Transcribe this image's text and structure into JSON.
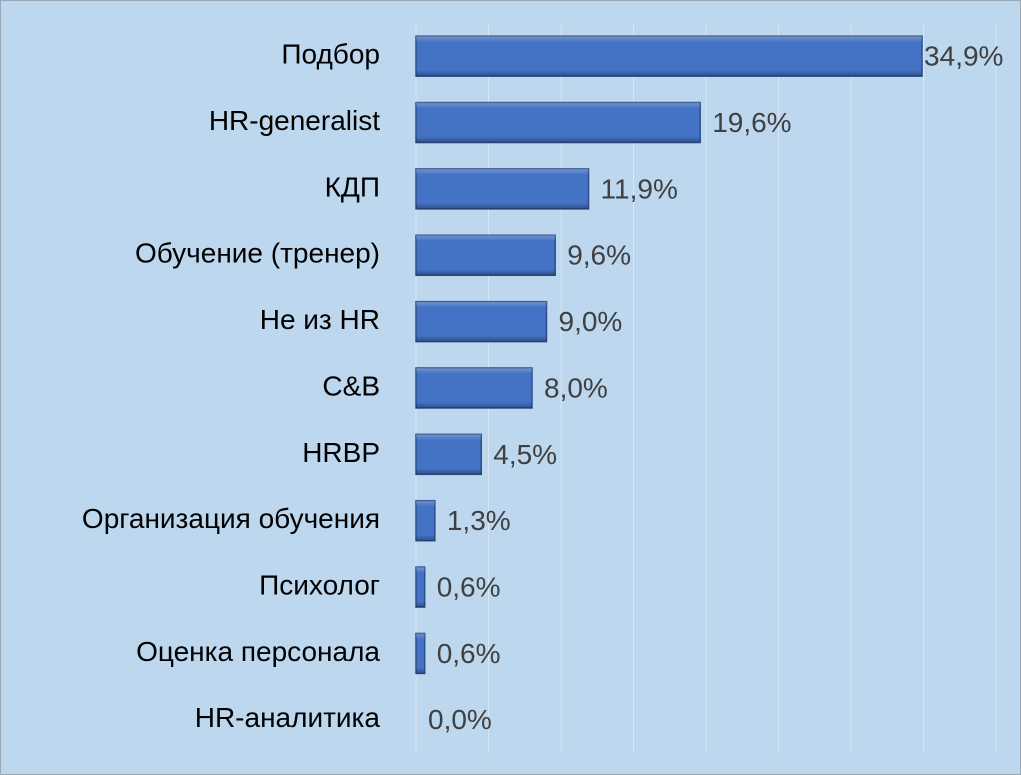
{
  "chart_data": {
    "type": "hbar",
    "categories": [
      "Подбор",
      "HR-generalist",
      "КДП",
      "Обучение (тренер)",
      "Не из HR",
      "C&B",
      "HRBP",
      "Организация обучения",
      "Психолог",
      "Оценка персонала ",
      "HR-аналитика"
    ],
    "values": [
      34.9,
      19.6,
      11.9,
      9.6,
      9.0,
      8.0,
      4.5,
      1.3,
      0.6,
      0.6,
      0.0
    ],
    "value_labels": [
      "34,9%",
      "19,6%",
      "11,9%",
      "9,6%",
      "9,0%",
      "8,0%",
      "4,5%",
      "1,3%",
      "0,6%",
      "0,6%",
      "0,0%"
    ],
    "color": "#4472c4",
    "xlim": [
      0,
      40
    ],
    "xticks": [
      0,
      5,
      10,
      15,
      20,
      25,
      30,
      35,
      40
    ],
    "grid": true
  }
}
